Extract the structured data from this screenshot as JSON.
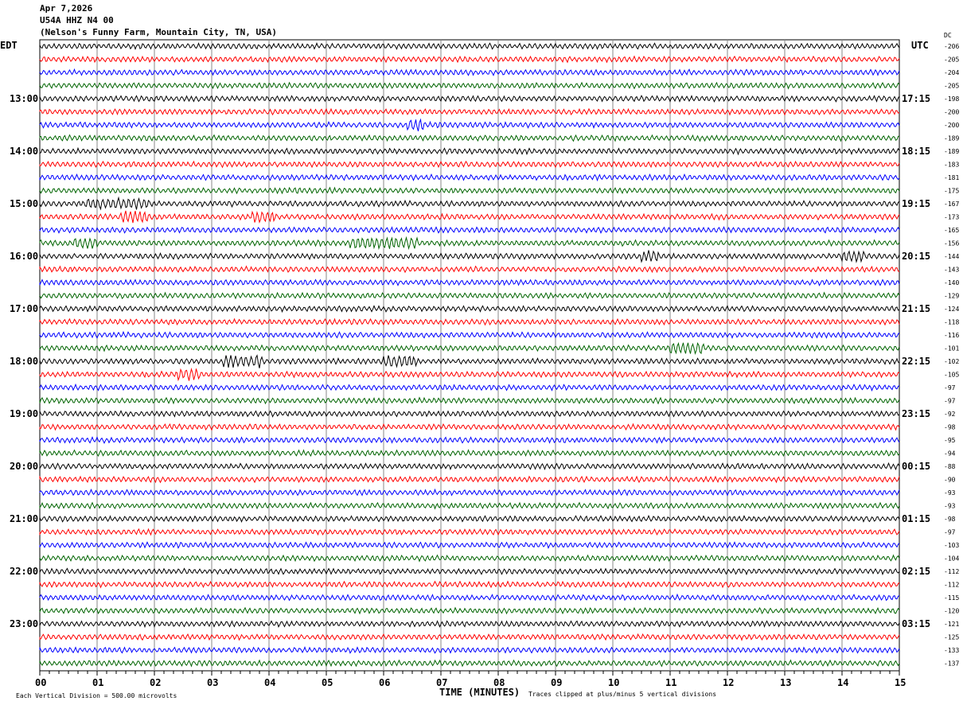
{
  "header": {
    "date": "Apr 7,2026",
    "station": "U54A HHZ N4 00",
    "location": "(Nelson's Funny Farm, Mountain City, TN, USA)"
  },
  "chart_data": {
    "type": "line",
    "title": "U54A HHZ N4 00 helicorder",
    "xlabel": "TIME (MINUTES)",
    "xlim": [
      0,
      15
    ],
    "x_ticks": [
      "00",
      "01",
      "02",
      "03",
      "04",
      "05",
      "06",
      "07",
      "08",
      "09",
      "10",
      "11",
      "12",
      "13",
      "14",
      "15"
    ],
    "left_axis_title": "EDT",
    "right_axis_title": "UTC",
    "dc_title": "DC",
    "left_labels": [
      "13:00",
      "14:00",
      "15:00",
      "16:00",
      "17:00",
      "18:00",
      "19:00",
      "20:00",
      "21:00",
      "22:00",
      "23:00"
    ],
    "right_labels": [
      "17:15",
      "18:15",
      "19:15",
      "20:15",
      "21:15",
      "22:15",
      "23:15",
      "00:15",
      "01:15",
      "02:15",
      "03:15"
    ],
    "trace_colors": [
      "#000000",
      "#ff0000",
      "#0000ff",
      "#006400"
    ],
    "dc_offsets": [
      -206,
      -205,
      -204,
      -205,
      -198,
      -200,
      -200,
      -189,
      -189,
      -183,
      -181,
      -175,
      -167,
      -173,
      -165,
      -156,
      -144,
      -143,
      -140,
      -129,
      -124,
      -118,
      -116,
      -101,
      -102,
      -105,
      -97,
      -97,
      -92,
      -98,
      -95,
      -94,
      -88,
      -90,
      -93,
      -93,
      -98,
      -97,
      -103,
      -104,
      -112,
      -112,
      -115,
      -120,
      -121,
      -125,
      -133,
      -137
    ],
    "scale_note": "Each Vertical Division =  500.00 microvolts",
    "clip_note": "Traces clipped at plus/minus 5 vertical divisions"
  }
}
